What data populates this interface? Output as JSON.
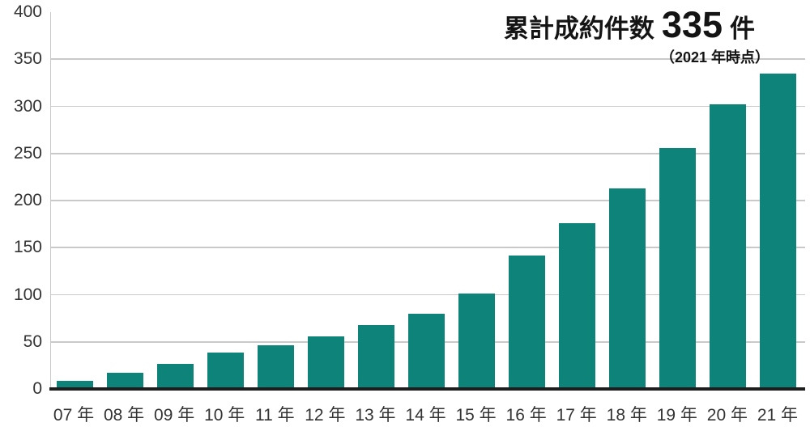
{
  "title": {
    "prefix": "累計成約件数",
    "value": "335",
    "suffix": "件",
    "note": "（2021 年時点）"
  },
  "chart_data": {
    "type": "bar",
    "title": "累計成約件数 335 件",
    "subtitle": "（2021 年時点）",
    "categories": [
      "07 年",
      "08 年",
      "09 年",
      "10 年",
      "11 年",
      "12 年",
      "13 年",
      "14 年",
      "15 年",
      "16 年",
      "17 年",
      "18 年",
      "19 年",
      "20 年",
      "21 年"
    ],
    "values": [
      9,
      17,
      27,
      39,
      46,
      56,
      68,
      80,
      101,
      142,
      176,
      213,
      256,
      302,
      335
    ],
    "xlabel": "",
    "ylabel": "",
    "ylim": [
      0,
      400
    ],
    "yticks": [
      0,
      50,
      100,
      150,
      200,
      250,
      300,
      350,
      400
    ],
    "grid": true,
    "legend": "none"
  },
  "colors": {
    "bar": "#0d837a",
    "gridline": "#c9c9c9",
    "axis_line": "#c9c9c9",
    "baseline": "#1d1d1d",
    "title_text": "#141414",
    "tick_text": "#333333",
    "background": "#ffffff"
  }
}
